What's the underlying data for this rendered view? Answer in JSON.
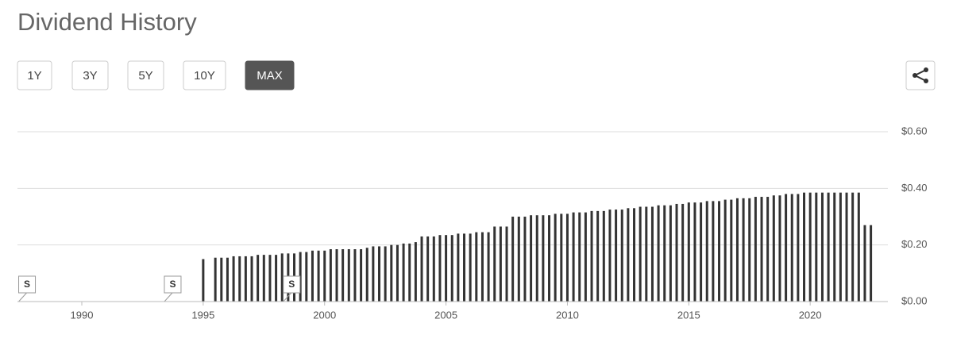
{
  "header": {
    "title": "Dividend History"
  },
  "buttons": [
    {
      "label": "1Y",
      "active": false
    },
    {
      "label": "3Y",
      "active": false
    },
    {
      "label": "5Y",
      "active": false
    },
    {
      "label": "10Y",
      "active": false
    },
    {
      "label": "MAX",
      "active": true
    }
  ],
  "chart_data": {
    "type": "bar",
    "color": "#333333",
    "grid": true,
    "x": [
      1995,
      1995.5,
      1995.75,
      1996,
      1996.25,
      1996.5,
      1996.75,
      1997,
      1997.25,
      1997.5,
      1997.75,
      1998,
      1998.25,
      1998.5,
      1998.75,
      1999,
      1999.25,
      1999.5,
      1999.75,
      2000,
      2000.25,
      2000.5,
      2000.75,
      2001,
      2001.25,
      2001.5,
      2001.75,
      2002,
      2002.25,
      2002.5,
      2002.75,
      2003,
      2003.25,
      2003.5,
      2003.75,
      2004,
      2004.25,
      2004.5,
      2004.75,
      2005,
      2005.25,
      2005.5,
      2005.75,
      2006,
      2006.25,
      2006.5,
      2006.75,
      2007,
      2007.25,
      2007.5,
      2007.75,
      2008,
      2008.25,
      2008.5,
      2008.75,
      2009,
      2009.25,
      2009.5,
      2009.75,
      2010,
      2010.25,
      2010.5,
      2010.75,
      2011,
      2011.25,
      2011.5,
      2011.75,
      2012,
      2012.25,
      2012.5,
      2012.75,
      2013,
      2013.25,
      2013.5,
      2013.75,
      2014,
      2014.25,
      2014.5,
      2014.75,
      2015,
      2015.25,
      2015.5,
      2015.75,
      2016,
      2016.25,
      2016.5,
      2016.75,
      2017,
      2017.25,
      2017.5,
      2017.75,
      2018,
      2018.25,
      2018.5,
      2018.75,
      2019,
      2019.25,
      2019.5,
      2019.75,
      2020,
      2020.25,
      2020.5,
      2020.75,
      2021,
      2021.25,
      2021.5,
      2021.75,
      2022,
      2022.25,
      2022.5
    ],
    "values": [
      0.15,
      0.155,
      0.155,
      0.155,
      0.16,
      0.16,
      0.16,
      0.16,
      0.165,
      0.165,
      0.165,
      0.165,
      0.17,
      0.17,
      0.17,
      0.175,
      0.175,
      0.18,
      0.18,
      0.18,
      0.185,
      0.185,
      0.185,
      0.185,
      0.185,
      0.185,
      0.19,
      0.195,
      0.195,
      0.195,
      0.2,
      0.2,
      0.205,
      0.205,
      0.21,
      0.23,
      0.23,
      0.23,
      0.235,
      0.235,
      0.235,
      0.24,
      0.24,
      0.24,
      0.245,
      0.245,
      0.245,
      0.265,
      0.265,
      0.265,
      0.3,
      0.3,
      0.3,
      0.305,
      0.305,
      0.305,
      0.305,
      0.31,
      0.31,
      0.31,
      0.315,
      0.315,
      0.315,
      0.32,
      0.32,
      0.32,
      0.325,
      0.325,
      0.325,
      0.33,
      0.33,
      0.335,
      0.335,
      0.335,
      0.34,
      0.34,
      0.34,
      0.345,
      0.345,
      0.35,
      0.35,
      0.35,
      0.355,
      0.355,
      0.355,
      0.36,
      0.36,
      0.365,
      0.365,
      0.365,
      0.37,
      0.37,
      0.37,
      0.375,
      0.375,
      0.38,
      0.38,
      0.38,
      0.385,
      0.385,
      0.385,
      0.385,
      0.385,
      0.385,
      0.385,
      0.385,
      0.385,
      0.385,
      0.27,
      0.27
    ],
    "xlim": [
      1987.35,
      2023.2
    ],
    "xticks": [
      1990,
      1995,
      2000,
      2005,
      2010,
      2015,
      2020
    ],
    "ylim": [
      0,
      0.6
    ],
    "yticks": [
      {
        "value": 0,
        "label": "$0.00"
      },
      {
        "value": 0.2,
        "label": "$0.20"
      },
      {
        "value": 0.4,
        "label": "$0.40"
      },
      {
        "value": 0.6,
        "label": "$0.60"
      }
    ],
    "annotations": [
      {
        "x": 1987.4,
        "label": "S"
      },
      {
        "x": 1993.4,
        "label": "S"
      },
      {
        "x": 1998.3,
        "label": "S"
      }
    ]
  }
}
